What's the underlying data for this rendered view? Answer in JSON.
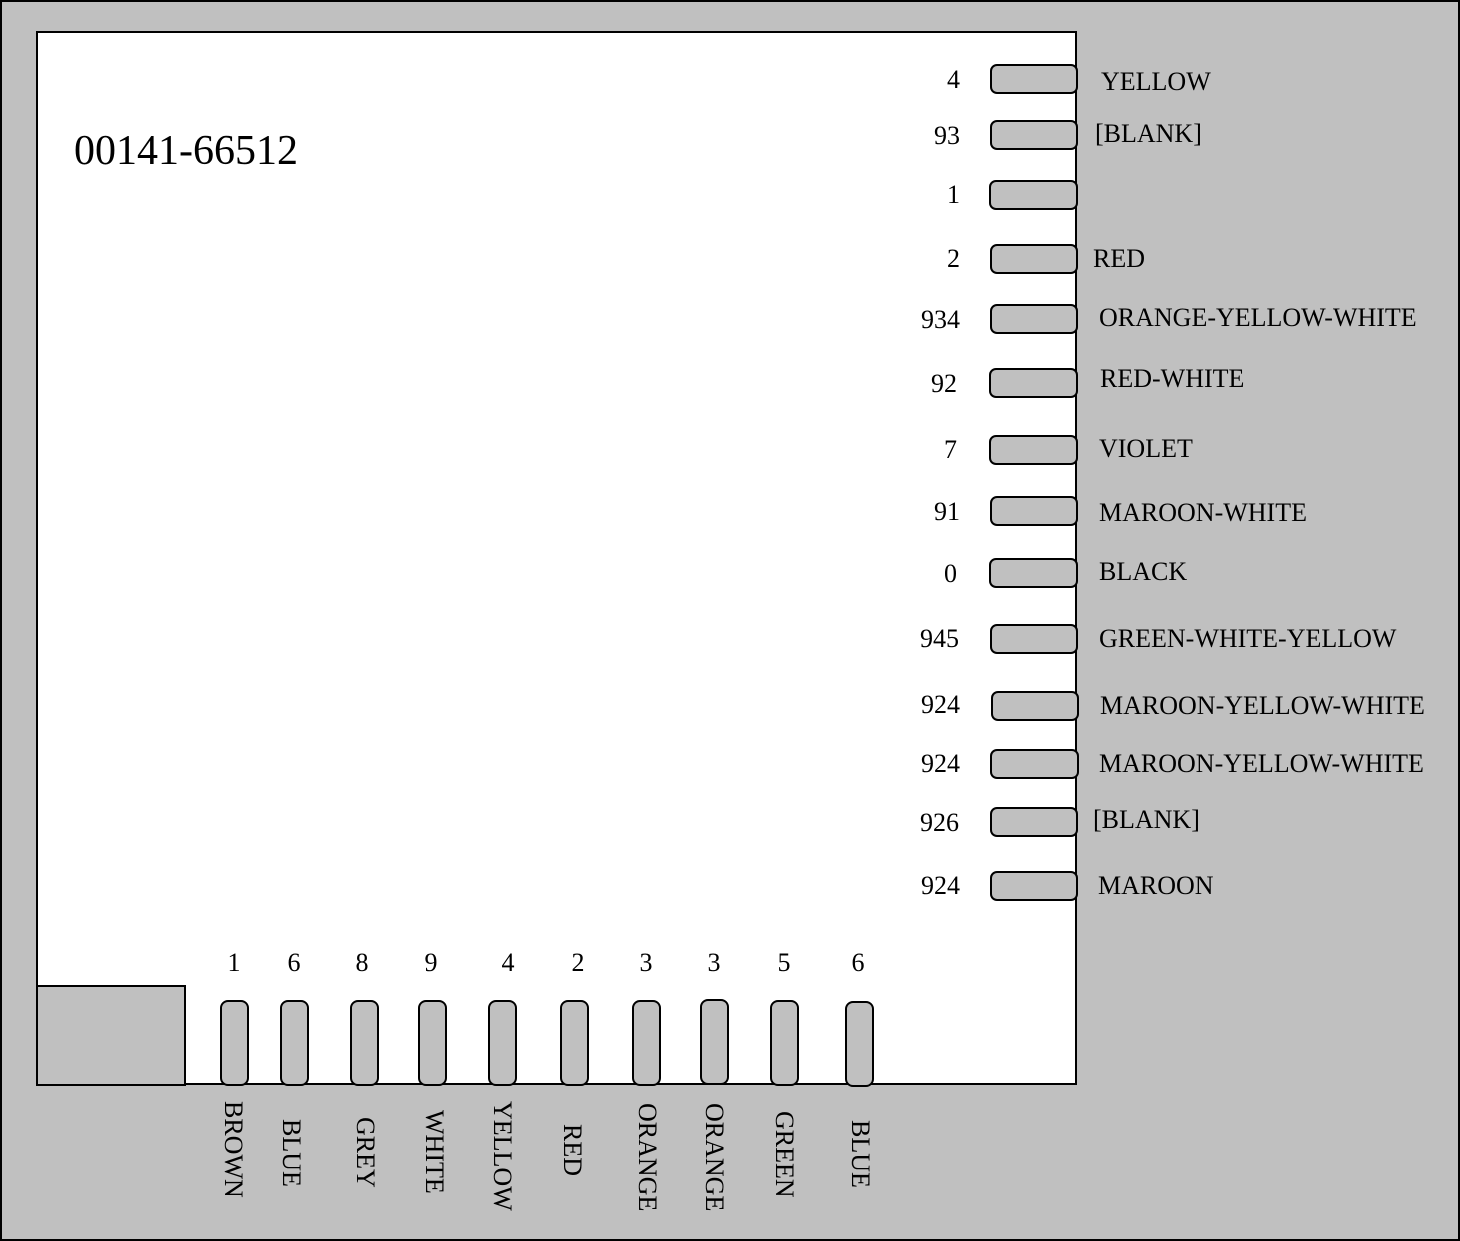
{
  "part_number": "00141-66512",
  "right_terminals": [
    {
      "number": "4",
      "color": "YELLOW"
    },
    {
      "number": "93",
      "color": "[BLANK]"
    },
    {
      "number": "1",
      "color": ""
    },
    {
      "number": "2",
      "color": "RED"
    },
    {
      "number": "934",
      "color": "ORANGE-YELLOW-WHITE"
    },
    {
      "number": "92",
      "color": "RED-WHITE"
    },
    {
      "number": "7",
      "color": "VIOLET"
    },
    {
      "number": "91",
      "color": "MAROON-WHITE"
    },
    {
      "number": "0",
      "color": "BLACK"
    },
    {
      "number": "945",
      "color": "GREEN-WHITE-YELLOW"
    },
    {
      "number": "924",
      "color": "MAROON-YELLOW-WHITE"
    },
    {
      "number": "924",
      "color": "MAROON-YELLOW-WHITE"
    },
    {
      "number": "926",
      "color": "[BLANK]"
    },
    {
      "number": "924",
      "color": "MAROON"
    }
  ],
  "bottom_terminals": [
    {
      "number": "1",
      "color": "BROWN"
    },
    {
      "number": "6",
      "color": "BLUE"
    },
    {
      "number": "8",
      "color": "GREY"
    },
    {
      "number": "9",
      "color": "WHITE"
    },
    {
      "number": "4",
      "color": "YELLOW"
    },
    {
      "number": "2",
      "color": "RED"
    },
    {
      "number": "3",
      "color": "ORANGE"
    },
    {
      "number": "3",
      "color": "ORANGE"
    },
    {
      "number": "5",
      "color": "GREEN"
    },
    {
      "number": "6",
      "color": "BLUE"
    }
  ],
  "colors": {
    "background": "#c0c0c0",
    "board": "#ffffff",
    "outline": "#000000"
  }
}
